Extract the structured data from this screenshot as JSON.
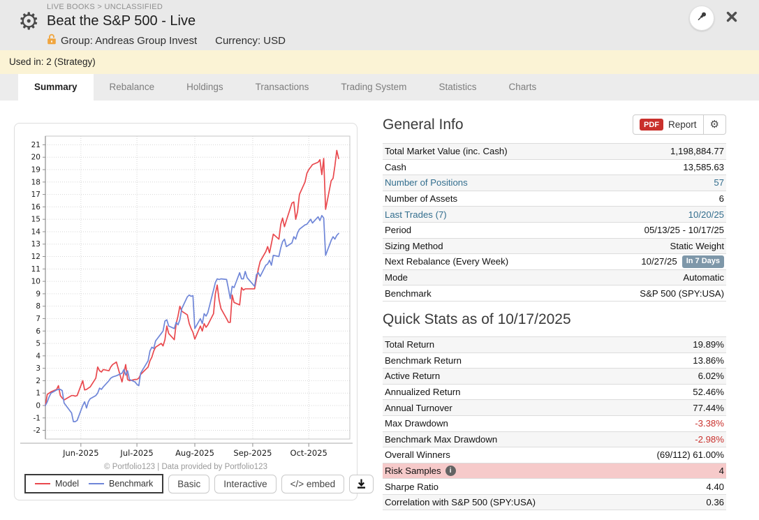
{
  "header": {
    "breadcrumb": "LIVE BOOKS > UNCLASSIFIED",
    "title": "Beat the S&P 500 - Live",
    "group_label": "Group: Andreas Group Invest",
    "currency_label": "Currency: USD"
  },
  "used_in_bar": {
    "text": "Used in: 2 (Strategy)"
  },
  "tabs": [
    {
      "label": "Summary",
      "active": true
    },
    {
      "label": "Rebalance",
      "active": false
    },
    {
      "label": "Holdings",
      "active": false
    },
    {
      "label": "Transactions",
      "active": false
    },
    {
      "label": "Trading System",
      "active": false
    },
    {
      "label": "Statistics",
      "active": false
    },
    {
      "label": "Charts",
      "active": false
    }
  ],
  "chart": {
    "attribution": "© Portfolio123 | Data provided by Portfolio123",
    "buttons": [
      "Basic",
      "Interactive",
      "</> embed"
    ]
  },
  "chart_data": {
    "type": "line",
    "title": "",
    "xlabel": "",
    "ylabel": "",
    "x_unit": "days since 2025-05-13",
    "x_range": [
      0,
      157
    ],
    "ylim": [
      -2.7,
      21.7
    ],
    "y_tick_min": -2,
    "y_tick_max": 21,
    "y_tick_step": 1,
    "grid": true,
    "legend_position": "bottom-left",
    "x_ticks": [
      {
        "day": 19,
        "label": "Jun-2025"
      },
      {
        "day": 49,
        "label": "Jul-2025"
      },
      {
        "day": 80,
        "label": "Aug-2025"
      },
      {
        "day": 111,
        "label": "Sep-2025"
      },
      {
        "day": 141,
        "label": "Oct-2025"
      }
    ],
    "days": [
      0,
      1,
      2,
      3,
      6,
      7,
      8,
      9,
      10,
      14,
      15,
      16,
      17,
      20,
      21,
      22,
      23,
      24,
      27,
      28,
      29,
      30,
      31,
      34,
      35,
      36,
      38,
      41,
      42,
      43,
      44,
      45,
      48,
      49,
      50,
      51,
      55,
      56,
      57,
      58,
      59,
      62,
      63,
      64,
      65,
      66,
      69,
      70,
      71,
      72,
      73,
      76,
      77,
      78,
      79,
      80,
      83,
      84,
      85,
      86,
      87,
      90,
      91,
      92,
      93,
      94,
      97,
      98,
      99,
      100,
      101,
      104,
      105,
      106,
      107,
      108,
      112,
      113,
      114,
      115,
      118,
      119,
      120,
      121,
      122,
      125,
      126,
      127,
      128,
      129,
      132,
      133,
      134,
      135,
      136,
      139,
      140,
      141,
      142,
      143,
      146,
      147,
      148,
      149,
      150,
      153,
      154,
      155,
      156,
      157
    ],
    "series": [
      {
        "name": "Model",
        "color": "#e9484d",
        "values": [
          0.0,
          0.9,
          1.0,
          1.1,
          1.3,
          1.6,
          0.8,
          0.6,
          0.45,
          0.8,
          0.8,
          0.75,
          0.8,
          2.0,
          1.25,
          1.3,
          1.4,
          1.5,
          2.2,
          3.1,
          2.8,
          2.7,
          2.9,
          2.8,
          3.1,
          3.3,
          3.5,
          1.9,
          2.6,
          3.3,
          2.1,
          2.0,
          2.1,
          2.1,
          2.2,
          2.5,
          3.1,
          3.6,
          3.9,
          4.4,
          4.7,
          5.0,
          4.8,
          5.3,
          6.4,
          5.8,
          5.3,
          6.6,
          7.2,
          8.0,
          7.6,
          7.3,
          6.6,
          6.2,
          5.9,
          5.35,
          6.4,
          6.0,
          6.6,
          6.3,
          6.5,
          7.4,
          9.0,
          9.7,
          8.5,
          7.8,
          7.0,
          6.7,
          6.7,
          8.9,
          8.3,
          8.1,
          9.5,
          9.3,
          9.4,
          9.4,
          9.4,
          10.2,
          11.0,
          11.6,
          12.4,
          12.8,
          12.3,
          13.05,
          13.8,
          13.4,
          14.6,
          15.1,
          14.4,
          14.9,
          16.3,
          16.4,
          15.0,
          15.6,
          17.0,
          18.0,
          18.7,
          19.0,
          19.2,
          19.4,
          19.6,
          19.8,
          18.6,
          19.9,
          15.8,
          18.1,
          18.3,
          19.3,
          20.55,
          19.89
        ]
      },
      {
        "name": "Benchmark",
        "color": "#6f86d8",
        "values": [
          0.0,
          0.3,
          0.7,
          1.0,
          1.25,
          1.3,
          1.3,
          1.2,
          0.2,
          -0.6,
          -1.3,
          -1.3,
          -1.2,
          0.0,
          0.3,
          -0.2,
          0.3,
          0.55,
          0.8,
          1.0,
          1.4,
          1.3,
          1.5,
          2.0,
          2.2,
          2.3,
          2.4,
          2.6,
          2.9,
          2.45,
          2.8,
          2.1,
          1.9,
          1.7,
          1.6,
          2.6,
          3.6,
          4.4,
          4.7,
          4.6,
          5.2,
          5.8,
          6.0,
          6.8,
          6.9,
          6.4,
          6.2,
          6.7,
          6.5,
          6.9,
          7.8,
          8.75,
          8.9,
          8.8,
          8.85,
          6.2,
          7.0,
          6.6,
          7.4,
          7.2,
          7.5,
          9.3,
          9.9,
          10.2,
          10.15,
          10.2,
          10.15,
          9.4,
          8.6,
          9.6,
          9.5,
          10.7,
          10.2,
          10.2,
          10.8,
          10.3,
          9.6,
          10.55,
          10.7,
          10.4,
          11.3,
          11.4,
          11.7,
          11.3,
          12.1,
          12.0,
          12.7,
          13.2,
          13.4,
          12.8,
          13.1,
          13.6,
          13.4,
          13.9,
          14.2,
          14.55,
          14.6,
          14.8,
          15.0,
          14.7,
          15.2,
          14.9,
          15.3,
          15.1,
          12.1,
          13.3,
          13.6,
          13.4,
          13.7,
          13.86
        ]
      }
    ]
  },
  "general_info": {
    "title": "General Info",
    "pdf_chip": "PDF",
    "report_label": "Report",
    "rows": [
      {
        "label": "Total Market Value (inc. Cash)",
        "value": "1,198,884.77"
      },
      {
        "label": "Cash",
        "value": "13,585.63"
      },
      {
        "label": "Number of Positions",
        "value": "57",
        "label_link": true,
        "value_link": true
      },
      {
        "label": "Number of Assets",
        "value": "6"
      },
      {
        "label": "Last Trades (7)",
        "value": "10/20/25",
        "label_link": true,
        "value_link": true
      },
      {
        "label": "Period",
        "value": "05/13/25 - 10/17/25"
      },
      {
        "label": "Sizing Method",
        "value": "Static Weight"
      },
      {
        "label": "Next Rebalance (Every Week)",
        "value": "10/27/25",
        "badge": "In 7 Days"
      },
      {
        "label": "Mode",
        "value": "Automatic"
      },
      {
        "label": "Benchmark",
        "value": "S&P 500 (SPY:USA)"
      }
    ]
  },
  "quick_stats": {
    "title": "Quick Stats as of 10/17/2025",
    "rows": [
      {
        "label": "Total Return",
        "value": "19.89%"
      },
      {
        "label": "Benchmark Return",
        "value": "13.86%"
      },
      {
        "label": "Active Return",
        "value": "6.02%"
      },
      {
        "label": "Annualized Return",
        "value": "52.46%"
      },
      {
        "label": "Annual Turnover",
        "value": "77.44%"
      },
      {
        "label": "Max Drawdown",
        "value": "-3.38%",
        "value_neg": true
      },
      {
        "label": "Benchmark Max Drawdown",
        "value": "-2.98%",
        "value_neg": true
      },
      {
        "label": "Overall Winners",
        "value": "(69/112) 61.00%"
      },
      {
        "label": "Risk Samples",
        "value": "4",
        "highlight": true,
        "info_icon": true
      },
      {
        "label": "Sharpe Ratio",
        "value": "4.40"
      },
      {
        "label": "Correlation with S&P 500 (SPY:USA)",
        "value": "0.36"
      }
    ]
  },
  "colors": {
    "model_line": "#e9484d",
    "benchmark_line": "#6f86d8",
    "link": "#336e8e",
    "negative": "#c9302c",
    "badge_bg": "#7e97a9",
    "highlight_row_bg": "#f6caca",
    "pdf_chip_bg": "#c9302c",
    "used_in_bar_bg": "#fbf3d5",
    "header_bg": "#e9e9e9"
  }
}
